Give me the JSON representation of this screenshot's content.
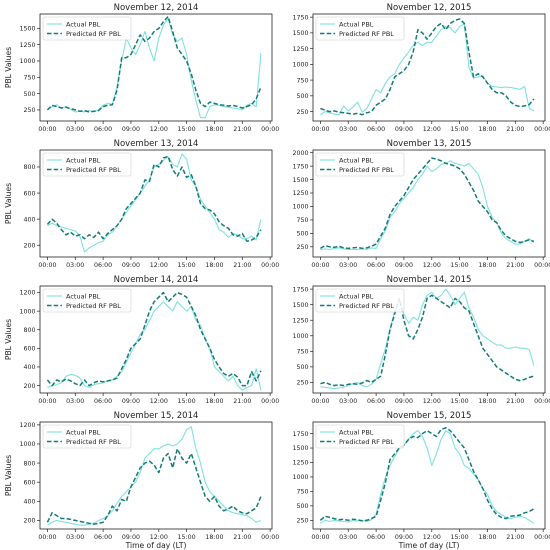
{
  "figure": {
    "xlabel": "Time of day (LT)",
    "ylabel": "PBL Values",
    "x_ticks": [
      "00:00",
      "03:00",
      "06:00",
      "09:00",
      "12:00",
      "15:00",
      "18:00",
      "21:00",
      "00:00"
    ],
    "colors": {
      "actual": "#7fe0e0",
      "predicted": "#137a78"
    }
  },
  "chart_data": [
    {
      "type": "line",
      "title": "November 12, 2014",
      "xlabel": "",
      "ylabel": "PBL Values",
      "ylim": [
        80,
        1720
      ],
      "yticks": [
        250,
        500,
        750,
        1000,
        1250,
        1500
      ],
      "x_hours_step": 0.5,
      "legend": "top-left",
      "series": [
        {
          "name": "Actual PBL",
          "values": [
            250,
            300,
            330,
            280,
            300,
            260,
            220,
            230,
            220,
            240,
            220,
            250,
            320,
            350,
            340,
            600,
            1000,
            1350,
            1200,
            1100,
            1250,
            1450,
            1200,
            1000,
            1350,
            1550,
            1650,
            1400,
            1300,
            1350,
            1100,
            700,
            400,
            130,
            130,
            300,
            330,
            320,
            300,
            290,
            280,
            270,
            250,
            320,
            350,
            300,
            1120
          ]
        },
        {
          "name": "Predicted RF PBL",
          "values": [
            250,
            320,
            300,
            280,
            290,
            270,
            250,
            230,
            240,
            220,
            230,
            240,
            300,
            320,
            330,
            550,
            1050,
            1050,
            1100,
            1250,
            1400,
            1300,
            1350,
            1450,
            1500,
            1600,
            1680,
            1450,
            1200,
            1100,
            1000,
            800,
            550,
            350,
            300,
            370,
            350,
            330,
            320,
            310,
            320,
            300,
            280,
            300,
            330,
            420,
            600
          ]
        }
      ]
    },
    {
      "type": "line",
      "title": "November 12, 2015",
      "xlabel": "",
      "ylabel": "",
      "ylim": [
        100,
        1800
      ],
      "yticks": [
        250,
        500,
        750,
        1000,
        1250,
        1500,
        1750
      ],
      "x_hours_step": 0.5,
      "legend": "top-left",
      "series": [
        {
          "name": "Actual PBL",
          "values": [
            200,
            250,
            230,
            210,
            200,
            340,
            260,
            320,
            400,
            240,
            300,
            450,
            600,
            550,
            700,
            800,
            850,
            1000,
            1100,
            1200,
            1300,
            1350,
            1300,
            1350,
            1350,
            1450,
            1550,
            1600,
            1580,
            1500,
            1600,
            1650,
            950,
            780,
            800,
            820,
            700,
            650,
            640,
            630,
            640,
            630,
            620,
            600,
            650,
            300,
            260
          ]
        },
        {
          "name": "Predicted RF PBL",
          "values": [
            300,
            270,
            250,
            260,
            240,
            230,
            220,
            210,
            220,
            200,
            230,
            250,
            350,
            400,
            450,
            600,
            800,
            850,
            900,
            1000,
            1200,
            1550,
            1500,
            1400,
            1500,
            1600,
            1650,
            1550,
            1650,
            1700,
            1720,
            1650,
            1200,
            800,
            850,
            800,
            700,
            600,
            550,
            550,
            500,
            400,
            350,
            330,
            340,
            360,
            450
          ]
        }
      ]
    },
    {
      "type": "line",
      "title": "November 13, 2014",
      "xlabel": "",
      "ylabel": "PBL Values",
      "ylim": [
        110,
        930
      ],
      "yticks": [
        200,
        400,
        600,
        800
      ],
      "x_hours_step": 0.5,
      "legend": "top-left",
      "series": [
        {
          "name": "Actual PBL",
          "values": [
            350,
            370,
            350,
            340,
            330,
            320,
            310,
            270,
            150,
            180,
            200,
            220,
            230,
            280,
            300,
            350,
            400,
            450,
            500,
            550,
            600,
            650,
            700,
            800,
            820,
            850,
            880,
            820,
            800,
            900,
            860,
            700,
            650,
            550,
            500,
            450,
            400,
            320,
            300,
            260,
            290,
            280,
            250,
            250,
            270,
            240,
            400
          ]
        },
        {
          "name": "Predicted RF PBL",
          "values": [
            360,
            400,
            370,
            320,
            280,
            300,
            270,
            280,
            250,
            280,
            260,
            300,
            250,
            290,
            320,
            350,
            400,
            480,
            520,
            560,
            600,
            700,
            690,
            820,
            800,
            870,
            880,
            780,
            730,
            800,
            720,
            740,
            650,
            520,
            480,
            470,
            440,
            380,
            350,
            330,
            280,
            270,
            290,
            230,
            240,
            260,
            320
          ]
        }
      ]
    },
    {
      "type": "line",
      "title": "November 13, 2015",
      "xlabel": "",
      "ylabel": "",
      "ylim": [
        60,
        2050
      ],
      "yticks": [
        250,
        500,
        750,
        1000,
        1250,
        1500,
        1750,
        2000
      ],
      "x_hours_step": 0.5,
      "legend": "top-left",
      "series": [
        {
          "name": "Actual PBL",
          "values": [
            200,
            210,
            200,
            220,
            230,
            210,
            200,
            200,
            200,
            210,
            200,
            230,
            220,
            400,
            550,
            800,
            900,
            1050,
            1150,
            1250,
            1350,
            1500,
            1600,
            1750,
            1650,
            1700,
            1780,
            1800,
            1850,
            1800,
            1780,
            1750,
            1800,
            1700,
            1600,
            1350,
            1000,
            800,
            700,
            500,
            400,
            350,
            300,
            300,
            350,
            400,
            330
          ]
        },
        {
          "name": "Predicted RF PBL",
          "values": [
            220,
            270,
            250,
            240,
            260,
            230,
            220,
            230,
            240,
            220,
            230,
            260,
            300,
            450,
            600,
            850,
            1000,
            1100,
            1200,
            1350,
            1500,
            1600,
            1700,
            1800,
            1900,
            1880,
            1850,
            1800,
            1780,
            1750,
            1700,
            1600,
            1450,
            1300,
            1100,
            1000,
            900,
            750,
            700,
            550,
            450,
            400,
            350,
            330,
            350,
            380,
            350
          ]
        }
      ]
    },
    {
      "type": "line",
      "title": "November 14, 2014",
      "xlabel": "",
      "ylabel": "PBL Values",
      "ylim": [
        120,
        1270
      ],
      "yticks": [
        200,
        400,
        600,
        800,
        1000,
        1200
      ],
      "x_hours_step": 0.5,
      "legend": "top-left",
      "series": [
        {
          "name": "Actual PBL",
          "values": [
            180,
            200,
            210,
            230,
            300,
            320,
            310,
            280,
            200,
            180,
            210,
            220,
            230,
            250,
            260,
            300,
            350,
            450,
            550,
            650,
            750,
            800,
            900,
            1000,
            1050,
            1100,
            1050,
            1000,
            1100,
            1050,
            1000,
            1050,
            900,
            850,
            700,
            600,
            400,
            350,
            300,
            250,
            300,
            200,
            150,
            180,
            200,
            380,
            150
          ]
        },
        {
          "name": "Predicted RF PBL",
          "values": [
            260,
            200,
            260,
            240,
            270,
            250,
            220,
            200,
            260,
            200,
            230,
            250,
            240,
            250,
            260,
            280,
            380,
            480,
            600,
            650,
            700,
            850,
            1000,
            1100,
            1150,
            1200,
            1100,
            1150,
            1200,
            1180,
            1150,
            1050,
            950,
            800,
            700,
            600,
            480,
            400,
            330,
            300,
            330,
            290,
            200,
            200,
            350,
            250,
            360
          ]
        }
      ]
    },
    {
      "type": "line",
      "title": "November 14, 2015",
      "xlabel": "",
      "ylabel": "",
      "ylim": [
        80,
        1800
      ],
      "yticks": [
        250,
        500,
        750,
        1000,
        1250,
        1500,
        1750
      ],
      "x_hours_step": 0.5,
      "legend": "top-left",
      "series": [
        {
          "name": "Actual PBL",
          "values": [
            180,
            170,
            160,
            150,
            160,
            170,
            200,
            230,
            250,
            200,
            180,
            220,
            300,
            550,
            800,
            1100,
            1400,
            1600,
            1350,
            1200,
            1300,
            1250,
            1500,
            1650,
            1700,
            1600,
            1650,
            1750,
            1650,
            1500,
            1600,
            1700,
            1450,
            1300,
            1100,
            1000,
            950,
            900,
            850,
            850,
            800,
            800,
            820,
            800,
            800,
            780,
            520
          ]
        },
        {
          "name": "Predicted RF PBL",
          "values": [
            230,
            250,
            220,
            200,
            210,
            200,
            220,
            230,
            220,
            240,
            280,
            250,
            300,
            350,
            700,
            1100,
            1350,
            1600,
            1250,
            1000,
            950,
            1100,
            1300,
            1600,
            1650,
            1600,
            1550,
            1500,
            1450,
            1600,
            1550,
            1450,
            1400,
            1200,
            1000,
            800,
            700,
            600,
            500,
            450,
            400,
            350,
            300,
            280,
            300,
            330,
            350
          ]
        }
      ]
    },
    {
      "type": "line",
      "title": "November 15, 2014",
      "xlabel": "Time of day (LT)",
      "ylabel": "PBL Values",
      "ylim": [
        110,
        1230
      ],
      "yticks": [
        200,
        400,
        600,
        800,
        1000,
        1200
      ],
      "x_hours_step": 0.5,
      "legend": "top-left",
      "series": [
        {
          "name": "Actual PBL",
          "values": [
            150,
            180,
            200,
            190,
            180,
            170,
            160,
            150,
            150,
            160,
            170,
            200,
            220,
            250,
            300,
            380,
            450,
            500,
            550,
            600,
            700,
            850,
            900,
            950,
            950,
            980,
            1000,
            980,
            1000,
            1050,
            1150,
            1180,
            950,
            800,
            600,
            500,
            450,
            400,
            350,
            300,
            280,
            270,
            260,
            250,
            220,
            180,
            200
          ]
        },
        {
          "name": "Predicted RF PBL",
          "values": [
            180,
            280,
            250,
            220,
            220,
            210,
            200,
            190,
            180,
            170,
            160,
            170,
            180,
            250,
            350,
            300,
            420,
            400,
            550,
            650,
            750,
            800,
            820,
            780,
            700,
            850,
            900,
            750,
            950,
            850,
            800,
            900,
            750,
            600,
            450,
            400,
            450,
            350,
            300,
            320,
            350,
            300,
            280,
            270,
            300,
            330,
            450
          ]
        }
      ]
    },
    {
      "type": "line",
      "title": "November 15, 2015",
      "xlabel": "Time of day (LT)",
      "ylabel": "",
      "ylim": [
        100,
        1950
      ],
      "yticks": [
        250,
        500,
        750,
        1000,
        1250,
        1500,
        1750
      ],
      "x_hours_step": 0.5,
      "legend": "top-left",
      "series": [
        {
          "name": "Actual PBL",
          "values": [
            200,
            250,
            230,
            250,
            240,
            230,
            220,
            250,
            240,
            250,
            230,
            260,
            350,
            700,
            1000,
            1200,
            1350,
            1500,
            1550,
            1650,
            1750,
            1800,
            1700,
            1500,
            1200,
            1400,
            1650,
            1800,
            1750,
            1500,
            1400,
            1200,
            1150,
            1050,
            950,
            800,
            700,
            500,
            400,
            350,
            300,
            280,
            300,
            320,
            300,
            250,
            200
          ]
        },
        {
          "name": "Predicted RF PBL",
          "values": [
            250,
            320,
            300,
            280,
            260,
            270,
            250,
            270,
            260,
            240,
            250,
            280,
            320,
            600,
            900,
            1300,
            1400,
            1500,
            1550,
            1650,
            1700,
            1680,
            1750,
            1800,
            1750,
            1700,
            1820,
            1850,
            1800,
            1700,
            1600,
            1500,
            1300,
            1100,
            950,
            800,
            600,
            450,
            350,
            300,
            280,
            320,
            330,
            340,
            380,
            400,
            450
          ]
        }
      ]
    }
  ]
}
